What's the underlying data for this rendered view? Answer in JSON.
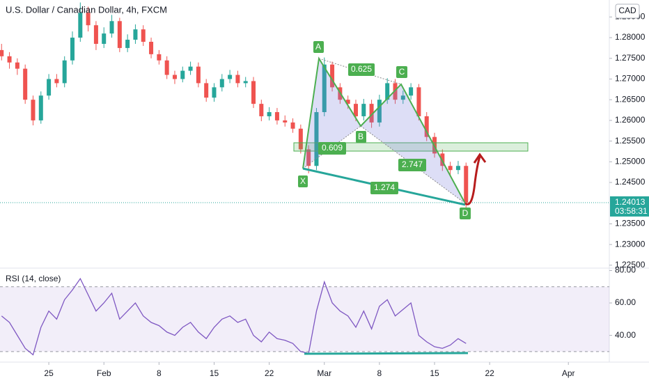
{
  "chart_data": [
    {
      "type": "candlestick",
      "title": "U.S. Dollar / Canadian Dollar, 4h, FXCM",
      "currency": "CAD",
      "x": [
        19,
        20,
        21,
        22,
        23,
        24,
        25,
        26,
        27,
        28,
        29,
        30,
        31,
        32,
        33,
        34,
        35,
        36,
        37,
        38,
        39,
        40,
        41,
        42,
        43,
        44,
        45,
        46,
        47,
        48,
        49,
        50,
        51,
        52,
        53,
        54,
        55,
        56,
        57,
        58,
        59,
        60,
        61,
        62,
        63,
        64,
        65,
        66,
        67,
        68,
        69,
        70,
        71,
        72,
        73,
        74,
        75,
        76,
        77,
        78
      ],
      "open": [
        1.277,
        1.2755,
        1.274,
        1.2725,
        1.265,
        1.26,
        1.266,
        1.27,
        1.269,
        1.2745,
        1.28,
        1.286,
        1.283,
        1.2785,
        1.281,
        1.284,
        1.2775,
        1.2795,
        1.282,
        1.279,
        1.276,
        1.2745,
        1.271,
        1.27,
        1.272,
        1.273,
        1.269,
        1.2655,
        1.268,
        1.27,
        1.271,
        1.269,
        1.2695,
        1.264,
        1.261,
        1.262,
        1.26,
        1.2595,
        1.258,
        1.253,
        1.249,
        1.262,
        1.2735,
        1.268,
        1.265,
        1.264,
        1.261,
        1.264,
        1.2595,
        1.265,
        1.269,
        1.265,
        1.266,
        1.268,
        1.261,
        1.256,
        1.252,
        1.249,
        1.248,
        1.249
      ],
      "high": [
        1.2785,
        1.2765,
        1.275,
        1.2735,
        1.266,
        1.267,
        1.2712,
        1.2712,
        1.2755,
        1.2815,
        1.2885,
        1.2875,
        1.284,
        1.2825,
        1.2855,
        1.2848,
        1.2808,
        1.2832,
        1.283,
        1.28,
        1.277,
        1.2755,
        1.272,
        1.273,
        1.2742,
        1.274,
        1.27,
        1.269,
        1.2712,
        1.2722,
        1.272,
        1.2705,
        1.2705,
        1.265,
        1.2632,
        1.263,
        1.2612,
        1.2605,
        1.259,
        1.254,
        1.263,
        1.2752,
        1.2742,
        1.269,
        1.266,
        1.265,
        1.2652,
        1.265,
        1.2662,
        1.2702,
        1.27,
        1.2672,
        1.269,
        1.2688,
        1.262,
        1.257,
        1.253,
        1.25,
        1.2502,
        1.2498
      ],
      "low": [
        1.2745,
        1.2725,
        1.271,
        1.264,
        1.2588,
        1.2592,
        1.265,
        1.268,
        1.268,
        1.2735,
        1.279,
        1.2815,
        1.277,
        1.2775,
        1.28,
        1.2765,
        1.2765,
        1.2785,
        1.278,
        1.275,
        1.2735,
        1.27,
        1.2688,
        1.2692,
        1.271,
        1.268,
        1.2645,
        1.2645,
        1.267,
        1.269,
        1.268,
        1.268,
        1.263,
        1.2598,
        1.26,
        1.259,
        1.2585,
        1.257,
        1.252,
        1.2472,
        1.248,
        1.261,
        1.267,
        1.264,
        1.2628,
        1.2598,
        1.26,
        1.2582,
        1.2585,
        1.264,
        1.264,
        1.264,
        1.265,
        1.26,
        1.255,
        1.251,
        1.2478,
        1.2468,
        1.247,
        1.2385
      ],
      "close": [
        1.2755,
        1.274,
        1.2725,
        1.265,
        1.26,
        1.266,
        1.27,
        1.269,
        1.2745,
        1.28,
        1.286,
        1.283,
        1.2785,
        1.281,
        1.284,
        1.2775,
        1.2795,
        1.282,
        1.279,
        1.276,
        1.2745,
        1.271,
        1.27,
        1.272,
        1.273,
        1.269,
        1.2655,
        1.268,
        1.27,
        1.271,
        1.269,
        1.2695,
        1.264,
        1.261,
        1.262,
        1.26,
        1.2595,
        1.258,
        1.253,
        1.249,
        1.262,
        1.2735,
        1.268,
        1.265,
        1.264,
        1.261,
        1.264,
        1.2595,
        1.265,
        1.269,
        1.265,
        1.266,
        1.268,
        1.261,
        1.256,
        1.252,
        1.249,
        1.248,
        1.249,
        1.2401
      ],
      "colors": {
        "up": "#26a69a",
        "down": "#ef5350"
      },
      "last_price": {
        "value": 1.24013,
        "label": "1.24013"
      },
      "countdown": "03:58:31",
      "xlim": [
        18.8,
        96.2
      ],
      "ylim": [
        1.2243,
        1.2891
      ],
      "yticks": [
        {
          "value": 1.285,
          "label": "1.28500"
        },
        {
          "value": 1.28,
          "label": "1.28000"
        },
        {
          "value": 1.275,
          "label": "1.27500"
        },
        {
          "value": 1.27,
          "label": "1.27000"
        },
        {
          "value": 1.265,
          "label": "1.26500"
        },
        {
          "value": 1.26,
          "label": "1.26000"
        },
        {
          "value": 1.255,
          "label": "1.25500"
        },
        {
          "value": 1.25,
          "label": "1.25000"
        },
        {
          "value": 1.245,
          "label": "1.24500"
        },
        {
          "value": 1.235,
          "label": "1.23500"
        },
        {
          "value": 1.23,
          "label": "1.23000"
        },
        {
          "value": 1.225,
          "label": "1.22500"
        }
      ],
      "annotations": {
        "points": [
          "X",
          "A",
          "B",
          "C",
          "D"
        ],
        "ratios": [
          "0.625",
          "0.609",
          "2.747",
          "1.274"
        ]
      }
    },
    {
      "type": "line",
      "title": "RSI (14, close)",
      "color": "#7e57c2",
      "x": [
        19,
        20,
        21,
        22,
        23,
        24,
        25,
        26,
        27,
        28,
        29,
        30,
        31,
        32,
        33,
        34,
        35,
        36,
        37,
        38,
        39,
        40,
        41,
        42,
        43,
        44,
        45,
        46,
        47,
        48,
        49,
        50,
        51,
        52,
        53,
        54,
        55,
        56,
        57,
        58,
        59,
        60,
        61,
        62,
        63,
        64,
        65,
        66,
        67,
        68,
        69,
        70,
        71,
        72,
        73,
        74,
        75,
        76,
        77,
        78
      ],
      "values": [
        52,
        48,
        40,
        32,
        28,
        45,
        55,
        50,
        62,
        68,
        75,
        65,
        55,
        60,
        66,
        50,
        55,
        60,
        52,
        48,
        46,
        42,
        40,
        45,
        48,
        42,
        38,
        45,
        50,
        52,
        48,
        50,
        40,
        36,
        42,
        38,
        37,
        35,
        30,
        29,
        55,
        73,
        60,
        55,
        52,
        45,
        55,
        44,
        58,
        62,
        52,
        56,
        60,
        40,
        36,
        33,
        32,
        34,
        38,
        35
      ],
      "bands": [
        30,
        70
      ],
      "xlim": [
        18.8,
        96.2
      ],
      "ylim": [
        23.5,
        81.5
      ],
      "yticks": [
        {
          "value": 40,
          "label": "40.00"
        },
        {
          "value": 60,
          "label": "60.00"
        },
        {
          "value": 80,
          "label": "80.00"
        }
      ],
      "xticks": [
        25,
        {
          "value": 32,
          "label": "Feb"
        },
        {
          "value": 39,
          "label": "8"
        },
        {
          "value": 46,
          "label": "15"
        },
        {
          "value": 53,
          "label": "22"
        },
        {
          "value": 60,
          "label": "Mar"
        },
        {
          "value": 67,
          "label": "8"
        },
        {
          "value": 74,
          "label": "15"
        },
        {
          "value": 81,
          "label": "22"
        },
        {
          "value": 91,
          "label": "Apr"
        }
      ]
    }
  ]
}
